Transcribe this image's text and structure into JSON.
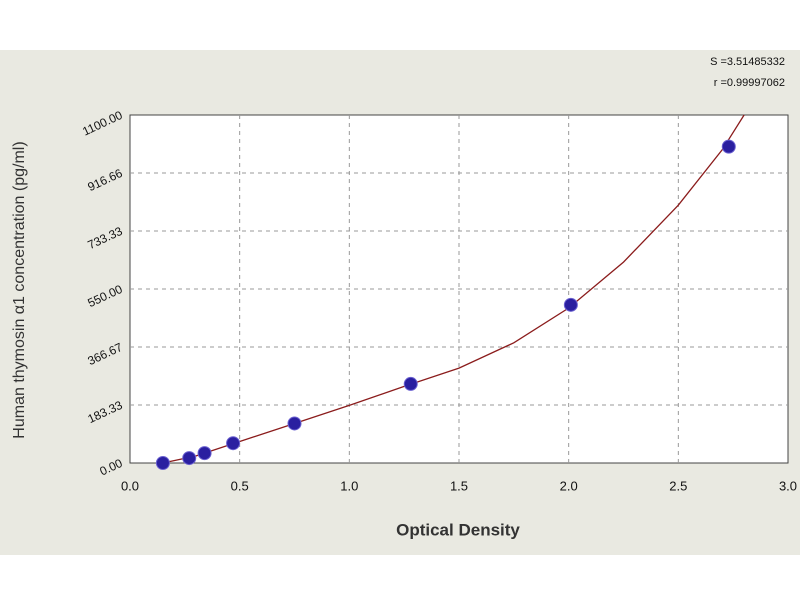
{
  "chart_data": {
    "type": "scatter",
    "x_label": "Optical Density",
    "y_label": "Human thymosin α1 concentration (pg/ml)",
    "annotations": [
      "S =3.51485332",
      "r =0.99997062"
    ],
    "x": [
      0.15,
      0.27,
      0.34,
      0.47,
      0.75,
      1.28,
      2.01,
      2.73
    ],
    "values": [
      0,
      15.6,
      31.25,
      62.5,
      125,
      250,
      500,
      1000
    ],
    "color": "#2a1fa0",
    "curve": {
      "color": "#8b1c1c",
      "x": [
        0.15,
        0.3,
        0.5,
        0.75,
        1.0,
        1.25,
        1.5,
        1.75,
        2.0,
        2.25,
        2.5,
        2.7,
        2.8
      ],
      "values": [
        0,
        22,
        68,
        125,
        182,
        242,
        300,
        380,
        490,
        635,
        815,
        990,
        1100
      ]
    },
    "xlim": [
      0,
      3
    ],
    "xticks": [
      {
        "value": 0,
        "label": "0.0"
      },
      0.5,
      {
        "value": 1,
        "label": "1.0"
      },
      1.5,
      {
        "value": 2,
        "label": "2.0"
      },
      2.5,
      {
        "value": 3,
        "label": "3.0"
      }
    ],
    "ylim": [
      0,
      1100
    ],
    "yticks": [
      {
        "value": 0,
        "label": "0.00"
      },
      {
        "value": 183.33,
        "label": "183.33"
      },
      {
        "value": 366.67,
        "label": "366.67"
      },
      {
        "value": 550,
        "label": "550.00"
      },
      {
        "value": 733.33,
        "label": "733.33"
      },
      {
        "value": 916.66,
        "label": "916.66"
      },
      {
        "value": 1100,
        "label": "1100.00"
      }
    ],
    "grid": true
  }
}
